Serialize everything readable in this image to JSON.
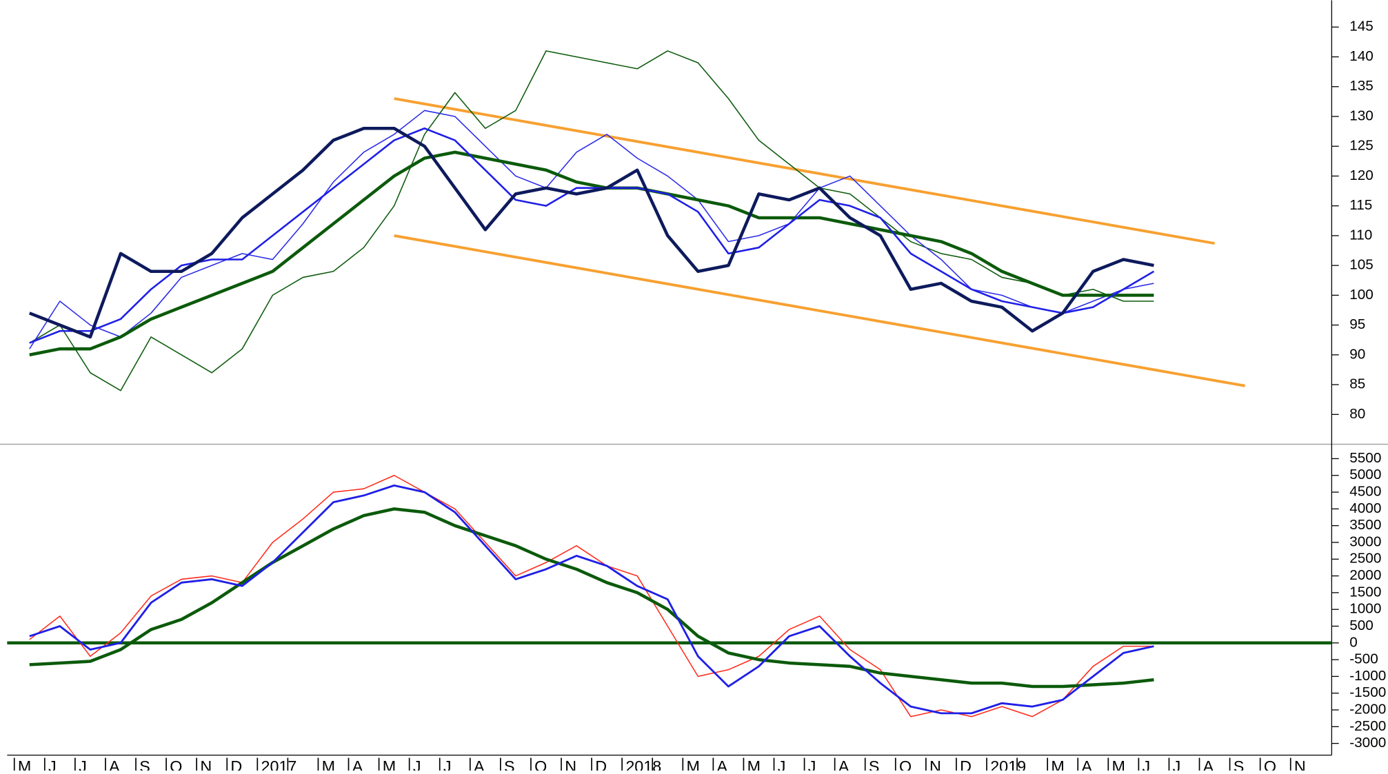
{
  "chart_data": [
    {
      "type": "line",
      "ylim": [
        75,
        149.5
      ],
      "yticks": [
        80,
        85,
        90,
        95,
        100,
        105,
        110,
        115,
        120,
        125,
        130,
        135,
        140,
        145
      ],
      "series": [
        {
          "color": "#f7a030",
          "width": 3,
          "values": [
            null,
            null,
            null,
            null,
            null,
            null,
            null,
            null,
            null,
            null,
            null,
            null,
            133.0,
            132.1,
            131.2,
            130.3,
            129.4,
            128.5,
            127.6,
            126.7,
            125.8,
            124.9,
            124.0,
            123.1,
            122.2,
            121.3,
            120.4,
            119.5,
            118.6,
            117.7,
            116.8,
            115.9,
            115.0,
            114.1,
            113.2,
            112.3,
            111.4,
            110.5,
            109.6,
            108.7,
            null,
            null,
            null
          ]
        },
        {
          "color": "#f7a030",
          "width": 3,
          "values": [
            null,
            null,
            null,
            null,
            null,
            null,
            null,
            null,
            null,
            null,
            null,
            null,
            110.0,
            109.1,
            108.2,
            107.3,
            106.4,
            105.5,
            104.6,
            103.7,
            102.8,
            101.9,
            101.0,
            100.1,
            99.2,
            98.3,
            97.4,
            96.5,
            95.6,
            94.7,
            93.8,
            92.9,
            92.0,
            91.1,
            90.2,
            89.3,
            88.4,
            87.5,
            86.6,
            85.7,
            84.8,
            null,
            null
          ]
        },
        {
          "color": "#0b5a0b",
          "width": 1.2,
          "values": [
            92,
            95,
            87,
            84,
            93,
            90,
            87,
            91,
            100,
            103,
            104,
            108,
            115,
            127,
            134,
            128,
            131,
            141,
            140,
            139,
            138,
            141,
            139,
            133,
            126,
            122,
            118,
            117,
            113,
            109,
            107,
            106,
            103,
            102,
            100,
            101,
            99,
            99,
            null,
            null,
            null,
            null,
            null
          ]
        },
        {
          "color": "#2a2ae8",
          "width": 1.2,
          "values": [
            91,
            99,
            95,
            93,
            97,
            103,
            105,
            107,
            106,
            112,
            119,
            124,
            127,
            131,
            130,
            125,
            120,
            118,
            124,
            127,
            123,
            120,
            116,
            109,
            110,
            112,
            118,
            120,
            115,
            110,
            106,
            101,
            100,
            98,
            97,
            99,
            101,
            102,
            null,
            null,
            null,
            null,
            null
          ]
        },
        {
          "color": "#0b5a0b",
          "width": 3.5,
          "values": [
            90,
            91,
            91,
            93,
            96,
            98,
            100,
            102,
            104,
            108,
            112,
            116,
            120,
            123,
            124,
            123,
            122,
            121,
            119,
            118,
            118,
            117,
            116,
            115,
            113,
            113,
            113,
            112,
            111,
            110,
            109,
            107,
            104,
            102,
            100,
            100,
            100,
            100,
            null,
            null,
            null,
            null,
            null
          ]
        },
        {
          "color": "#1f1fe6",
          "width": 2,
          "values": [
            92,
            94,
            94,
            96,
            101,
            105,
            106,
            106,
            110,
            114,
            118,
            122,
            126,
            128,
            126,
            121,
            116,
            115,
            118,
            118,
            118,
            117,
            114,
            107,
            108,
            112,
            116,
            115,
            113,
            107,
            104,
            101,
            99,
            98,
            97,
            98,
            101,
            104,
            null,
            null,
            null,
            null,
            null
          ]
        },
        {
          "color": "#0d1a5c",
          "width": 3.5,
          "values": [
            97,
            95,
            93,
            107,
            104,
            104,
            107,
            113,
            117,
            121,
            126,
            128,
            128,
            125,
            118,
            111,
            117,
            118,
            117,
            118,
            121,
            110,
            104,
            105,
            117,
            116,
            118,
            113,
            110,
            101,
            102,
            99,
            98,
            94,
            97,
            104,
            106,
            105,
            null,
            null,
            null,
            null,
            null
          ]
        }
      ]
    },
    {
      "type": "line",
      "ylim": [
        -3350,
        5930
      ],
      "yticks": [
        -3000,
        -2500,
        -2000,
        -1500,
        -1000,
        -500,
        0,
        500,
        1000,
        1500,
        2000,
        2500,
        3000,
        3500,
        4000,
        4500,
        5000,
        5500
      ],
      "hline": {
        "value": 0,
        "color": "#0b5a0b"
      },
      "categories": [
        "M",
        "J",
        "J",
        "A",
        "S",
        "O",
        "N",
        "D",
        "2017",
        null,
        "M",
        "A",
        "M",
        "J",
        "J",
        "A",
        "S",
        "O",
        "N",
        "D",
        "2018",
        null,
        "M",
        "A",
        "M",
        "J",
        "J",
        "A",
        "S",
        "O",
        "N",
        "D",
        "2019",
        null,
        "M",
        "A",
        "M",
        "J",
        "J",
        "A",
        "S",
        "O",
        "N"
      ],
      "series": [
        {
          "color": "#ff2a1a",
          "width": 1.2,
          "values": [
            100,
            800,
            -400,
            300,
            1400,
            1900,
            2000,
            1800,
            3000,
            3700,
            4500,
            4600,
            5000,
            4500,
            4000,
            3000,
            2000,
            2400,
            2900,
            2300,
            2000,
            500,
            -1000,
            -800,
            -400,
            400,
            800,
            -200,
            -800,
            -2200,
            -2000,
            -2200,
            -1900,
            -2200,
            -1700,
            -700,
            -100,
            -100,
            null,
            null,
            null,
            null,
            null
          ]
        },
        {
          "color": "#0b5a0b",
          "width": 3.5,
          "values": [
            -650,
            -600,
            -550,
            -200,
            400,
            700,
            1200,
            1800,
            2400,
            2900,
            3400,
            3800,
            4000,
            3900,
            3500,
            3200,
            2900,
            2500,
            2200,
            1800,
            1500,
            1000,
            200,
            -300,
            -500,
            -600,
            -650,
            -700,
            -900,
            -1000,
            -1100,
            -1200,
            -1200,
            -1300,
            -1300,
            -1250,
            -1200,
            -1100,
            null,
            null,
            null,
            null,
            null
          ]
        },
        {
          "color": "#1f1fe6",
          "width": 2.2,
          "values": [
            200,
            500,
            -200,
            0,
            1200,
            1800,
            1900,
            1700,
            2400,
            3300,
            4200,
            4400,
            4700,
            4500,
            3900,
            2900,
            1900,
            2200,
            2600,
            2300,
            1700,
            1300,
            -400,
            -1300,
            -700,
            200,
            500,
            -400,
            -1200,
            -1900,
            -2100,
            -2100,
            -1800,
            -1900,
            -1700,
            -1000,
            -300,
            -100,
            null,
            null,
            null,
            null,
            null
          ]
        }
      ]
    }
  ]
}
